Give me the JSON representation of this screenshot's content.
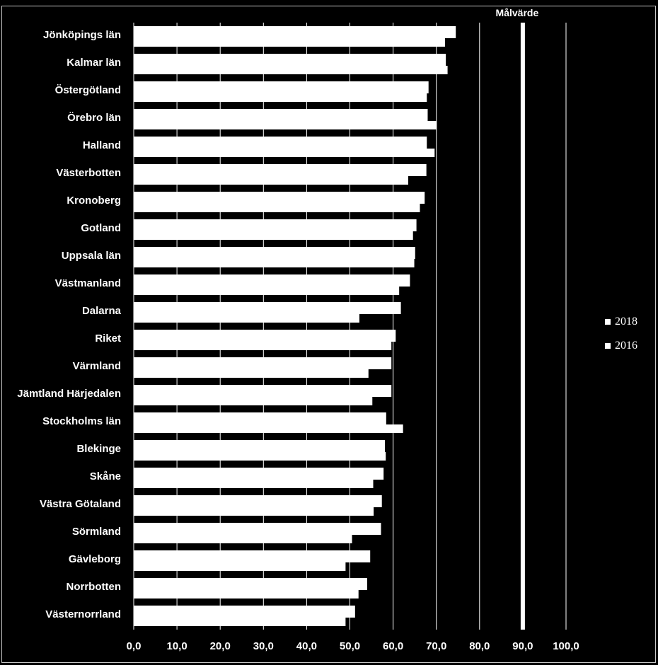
{
  "chart_data": {
    "type": "bar",
    "orientation": "horizontal",
    "categories": [
      "Jönköpings län",
      "Kalmar län",
      "Östergötland",
      "Örebro län",
      "Halland",
      "Västerbotten",
      "Kronoberg",
      "Gotland",
      "Uppsala län",
      "Västmanland",
      "Dalarna",
      "Riket",
      "Värmland",
      "Jämtland Härjedalen",
      "Stockholms län",
      "Blekinge",
      "Skåne",
      "Västra Götaland",
      "Sörmland",
      "Gävleborg",
      "Norrbotten",
      "Västernorrland"
    ],
    "series": [
      {
        "name": "2018",
        "values": [
          74.5,
          72.2,
          68.2,
          68.0,
          67.8,
          67.7,
          67.3,
          65.4,
          65.1,
          63.9,
          61.8,
          60.6,
          59.6,
          59.6,
          58.4,
          58.1,
          57.8,
          57.4,
          57.2,
          54.7,
          54.0,
          51.2
        ]
      },
      {
        "name": "2016",
        "values": [
          72.0,
          72.6,
          67.8,
          70.1,
          69.6,
          63.5,
          66.2,
          64.6,
          64.9,
          61.4,
          52.2,
          59.6,
          54.3,
          55.2,
          62.3,
          58.3,
          55.4,
          55.5,
          50.5,
          49.0,
          52.0,
          49.0
        ]
      }
    ],
    "target": {
      "label": "Målvärde",
      "value": 90
    },
    "xlim": [
      0,
      100
    ],
    "ticks": [
      "0,0",
      "10,0",
      "20,0",
      "30,0",
      "40,0",
      "50,0",
      "60,0",
      "70,0",
      "80,0",
      "90,0",
      "100,0"
    ],
    "grid": true,
    "legend_position": "right",
    "colors": {
      "background": "#000000",
      "bars": "#ffffff",
      "grid": "#ffffff"
    }
  }
}
